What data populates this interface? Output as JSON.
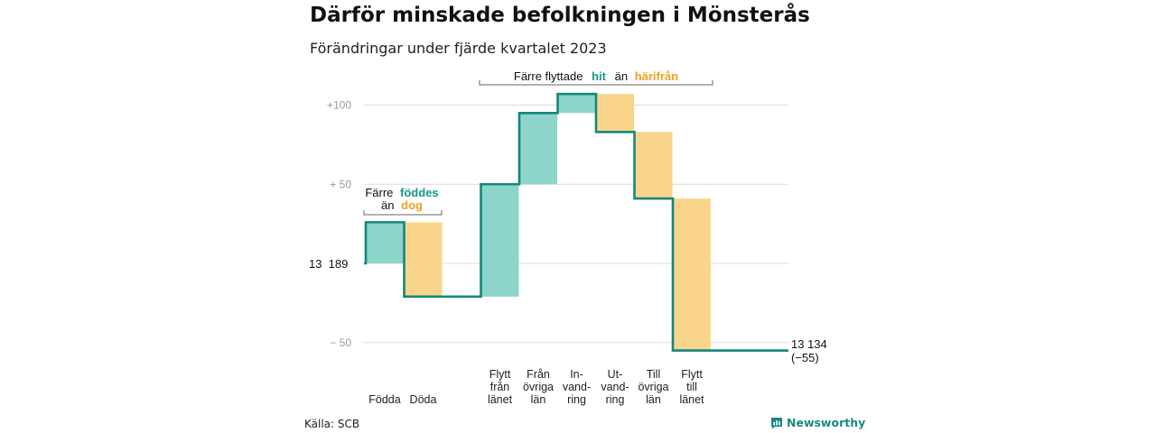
{
  "title": "Därför minskade befolkningen i Mönsterås",
  "subtitle": "Förändringar under fjärde kvartalet 2023",
  "source": "Källa: SCB",
  "brand": "Newsworthy",
  "colors": {
    "increase_fill": "#8dd4cb",
    "decrease_fill": "#f9d58c",
    "line": "#14877c",
    "teal_text": "#1a9488",
    "orange_text": "#f0a020",
    "grid": "#dcdcdc",
    "axis_text": "#9a9a9a"
  },
  "annotations": {
    "births": {
      "line1_prefix": "Färre",
      "line1_highlight": "föddes",
      "line2_prefix": "än",
      "line2_highlight": "dog"
    },
    "moves": {
      "prefix": "Färre flyttade",
      "highlight1": "hit",
      "middle": "än",
      "highlight2": "härifrån"
    }
  },
  "start_label": "13  189",
  "end_label": {
    "line1": "13 134",
    "line2": "(−55)"
  },
  "chart_data": {
    "type": "waterfall",
    "start_value": 13189,
    "end_value": 13134,
    "net_change": -55,
    "y_ticks": [
      {
        "offset": 100,
        "label": "+100"
      },
      {
        "offset": 50,
        "label": "+  50"
      },
      {
        "offset": -50,
        "label": "−  50"
      }
    ],
    "ylim": [
      -60,
      112
    ],
    "steps": [
      {
        "key": "fodda",
        "label_lines": [
          "Födda"
        ],
        "change": 26
      },
      {
        "key": "doda",
        "label_lines": [
          "Döda"
        ],
        "change": -47
      },
      {
        "key": "flytt_fran_lanet",
        "label_lines": [
          "Flytt",
          "från",
          "länet"
        ],
        "change": 71
      },
      {
        "key": "fran_ovriga_lan",
        "label_lines": [
          "Från",
          "övriga",
          "län"
        ],
        "change": 45
      },
      {
        "key": "invandring",
        "label_lines": [
          "In-",
          "vand-",
          "ring"
        ],
        "change": 12
      },
      {
        "key": "utvandring",
        "label_lines": [
          "Ut-",
          "vand-",
          "ring"
        ],
        "change": -24
      },
      {
        "key": "till_ovriga_lan",
        "label_lines": [
          "Till",
          "övriga",
          "län"
        ],
        "change": -42
      },
      {
        "key": "flytt_till_lanet",
        "label_lines": [
          "Flytt",
          "till",
          "länet"
        ],
        "change": -96
      }
    ]
  }
}
